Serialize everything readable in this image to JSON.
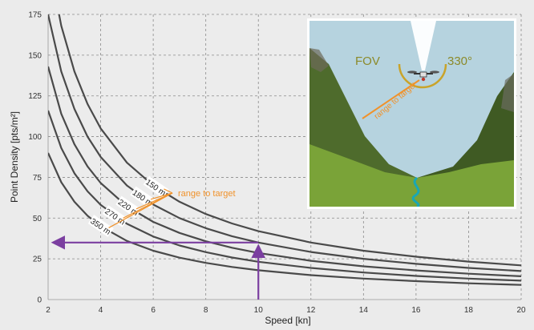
{
  "chart_data": {
    "type": "line",
    "xlabel": "Speed [kn]",
    "ylabel": "Point Density [pts/m²]",
    "xlim": [
      2,
      20
    ],
    "ylim": [
      0,
      175
    ],
    "xticks": [
      2,
      4,
      6,
      8,
      10,
      12,
      14,
      16,
      18,
      20
    ],
    "yticks": [
      0,
      25,
      50,
      75,
      100,
      125,
      150,
      175
    ],
    "grid": "dashed, on",
    "x": [
      2,
      2.5,
      3,
      3.5,
      4,
      5,
      6,
      7,
      8,
      9,
      10,
      12,
      14,
      16,
      18,
      20
    ],
    "series": [
      {
        "name": "150 m",
        "values": [
          210,
          168,
          140,
          120,
          105,
          84,
          70,
          60,
          52.5,
          46.7,
          42,
          35,
          30,
          26.3,
          23.3,
          21
        ]
      },
      {
        "name": "180 m",
        "values": [
          175,
          140,
          117,
          100,
          87.5,
          70,
          58.3,
          50,
          43.8,
          38.9,
          35,
          29.2,
          25,
          21.9,
          19.4,
          17.5
        ]
      },
      {
        "name": "220 m",
        "values": [
          143,
          114,
          95.3,
          81.7,
          71.5,
          57.2,
          47.7,
          40.9,
          35.8,
          31.8,
          28.6,
          23.8,
          20.4,
          17.9,
          15.9,
          14.3
        ]
      },
      {
        "name": "270 m",
        "values": [
          116,
          93,
          77.5,
          66.4,
          58.1,
          46.5,
          38.7,
          33.2,
          29.1,
          25.8,
          23.2,
          19.4,
          16.6,
          14.5,
          12.9,
          11.6
        ]
      },
      {
        "name": "350 m",
        "values": [
          90,
          72,
          60,
          51.4,
          45,
          36,
          30,
          25.7,
          22.5,
          20,
          18,
          15,
          12.9,
          11.3,
          10,
          9
        ]
      }
    ],
    "annotations": {
      "range_label": "range to target",
      "guide_x": 10,
      "guide_y": 35
    },
    "inset": {
      "fov_label": "FOV",
      "angle_label": "330°",
      "range_label": "range to target"
    }
  },
  "colors": {
    "curve": "#4a4a4a",
    "grid": "#8a8a8a",
    "annotation": "#f0922b",
    "guide": "#7b3fa0",
    "sky": "#b6d3df",
    "background": "#ebebeb"
  }
}
